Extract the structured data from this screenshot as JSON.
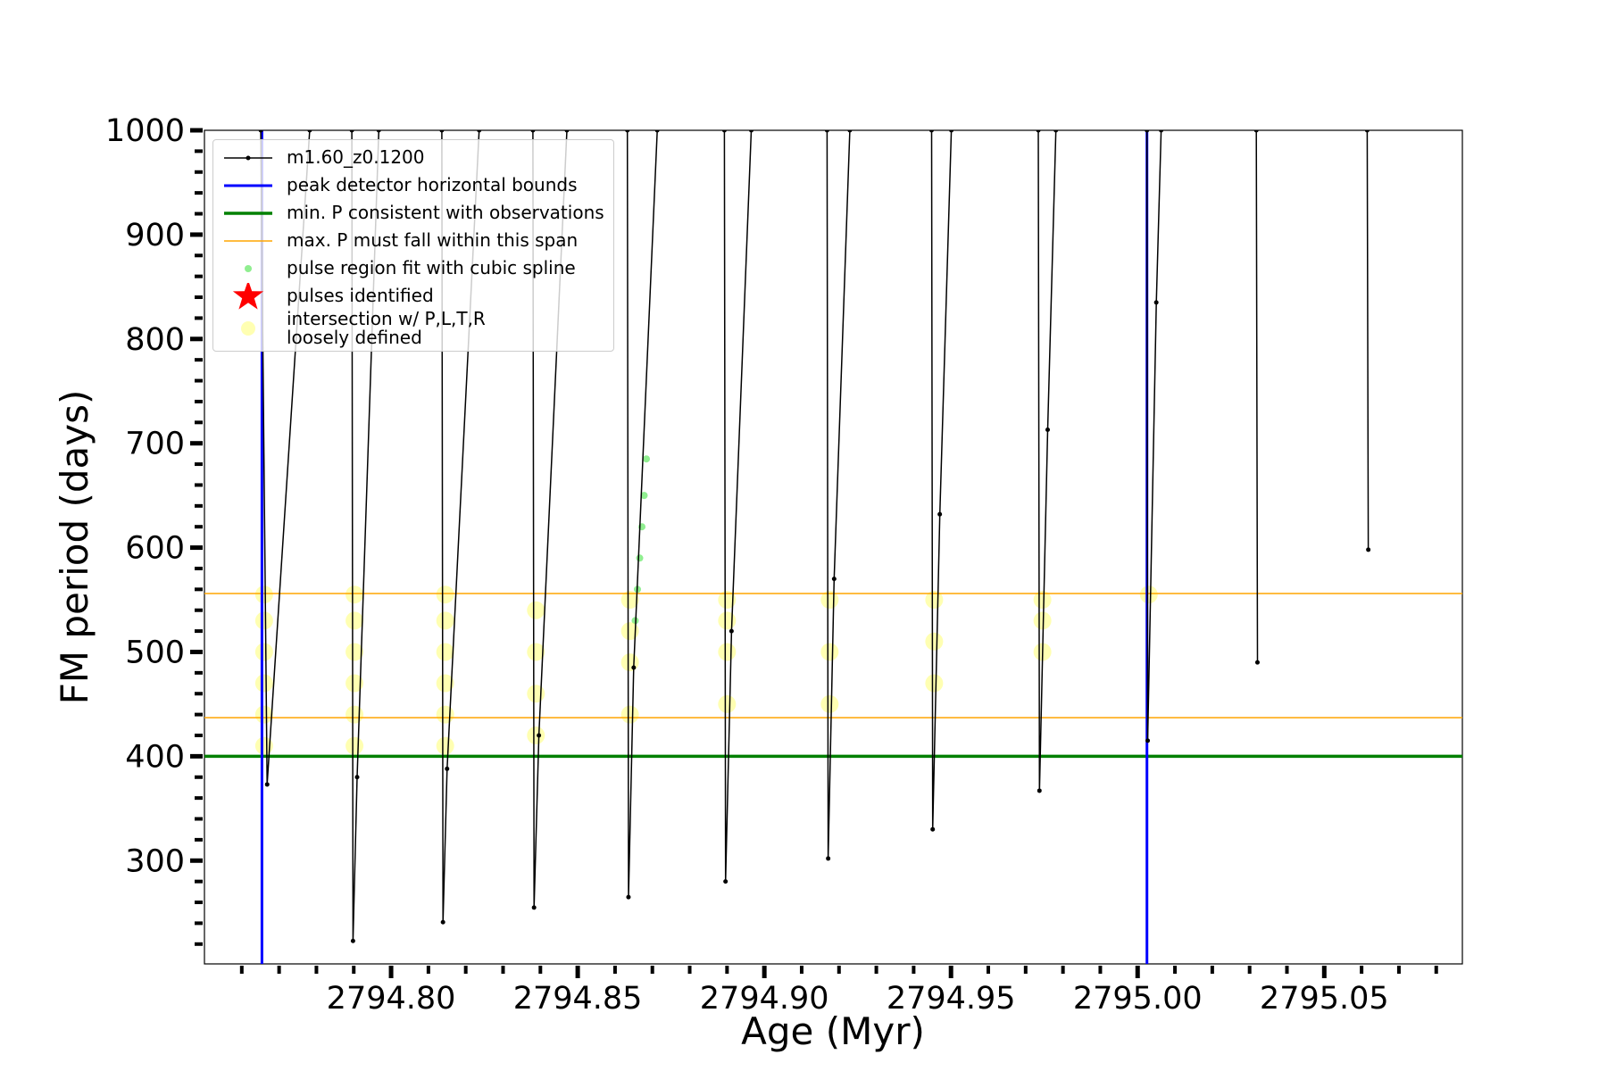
{
  "chart_data": {
    "type": "line",
    "xlabel": "Age (Myr)",
    "ylabel": "FM period (days)",
    "xlim": [
      2794.75,
      2795.087
    ],
    "ylim": [
      201,
      1000
    ],
    "xticks": [
      {
        "value": 2794.8,
        "label": "2794.80"
      },
      {
        "value": 2794.85,
        "label": "2794.85"
      },
      {
        "value": 2794.9,
        "label": "2794.90"
      },
      {
        "value": 2794.95,
        "label": "2794.95"
      },
      {
        "value": 2795.0,
        "label": "2795.00"
      },
      {
        "value": 2795.05,
        "label": "2795.05"
      }
    ],
    "xticks_minor": [
      2794.76,
      2794.77,
      2794.78,
      2794.79,
      2794.81,
      2794.82,
      2794.83,
      2794.84,
      2794.86,
      2794.87,
      2794.88,
      2794.89,
      2794.91,
      2794.92,
      2794.93,
      2794.94,
      2794.96,
      2794.97,
      2794.98,
      2794.99,
      2795.01,
      2795.02,
      2795.03,
      2795.04,
      2795.06,
      2795.07,
      2795.08
    ],
    "yticks": [
      300,
      400,
      500,
      600,
      700,
      800,
      900,
      1000
    ],
    "yticks_minor": [
      220,
      240,
      260,
      280,
      320,
      340,
      360,
      380,
      420,
      440,
      460,
      480,
      520,
      540,
      560,
      580,
      620,
      640,
      660,
      680,
      720,
      740,
      760,
      780,
      820,
      840,
      860,
      880,
      920,
      940,
      960,
      980
    ],
    "legend": "upper left",
    "series": [
      {
        "name": "m1.60_z0.1200",
        "type": "line",
        "color": "#000000",
        "linewidth": 1.5,
        "x": [
          2794.7651,
          2794.7668,
          2794.7782,
          null,
          2794.7895,
          2794.7898,
          2794.7909,
          2794.7967,
          null,
          2794.8136,
          2794.8139,
          2794.815,
          2794.8236,
          null,
          2794.838,
          2794.8383,
          2794.8396,
          2794.8471,
          null,
          2794.8633,
          2794.8636,
          2794.865,
          2794.8713,
          null,
          2794.8893,
          2794.8896,
          2794.8912,
          2794.8965,
          null,
          2794.9168,
          2794.9171,
          2794.9187,
          2794.9229,
          null,
          2794.9448,
          2794.9451,
          2794.947,
          2794.9501,
          null,
          2794.9734,
          2794.9737,
          2794.9759,
          2794.9781,
          null,
          2795.0025,
          2795.0027,
          2795.005,
          2795.0063,
          null,
          2795.0318,
          2795.0321,
          null,
          2795.0615,
          2795.0618
        ],
        "values": [
          1000,
          373,
          1000,
          null,
          1000,
          223,
          380,
          1000,
          null,
          1000,
          241,
          388,
          1000,
          null,
          1000,
          255,
          420,
          1000,
          null,
          1000,
          265,
          485,
          1000,
          null,
          1000,
          280,
          520,
          1000,
          null,
          1000,
          302,
          570,
          1000,
          null,
          1000,
          330,
          632,
          1000,
          null,
          1000,
          367,
          713,
          1000,
          null,
          1000,
          415,
          835,
          1000,
          null,
          1000,
          490,
          null,
          1000,
          598
        ]
      },
      {
        "name": "peak detector horizontal bounds",
        "type": "vline",
        "color": "#0000ff",
        "linewidth": 3,
        "x": [
          2794.7654,
          2795.0025
        ]
      },
      {
        "name": "min. P consistent with observations",
        "type": "hline",
        "color": "#008000",
        "linewidth": 3.5,
        "values": [
          400
        ]
      },
      {
        "name": "max. P must fall within this span",
        "type": "hline",
        "color": "#ffa500",
        "linewidth": 1.5,
        "values": [
          556,
          437
        ]
      },
      {
        "name": "pulse region fit with cubic spline",
        "type": "scatter",
        "marker": "dot",
        "color": "#90ee90",
        "x": [
          2794.8654,
          2794.866,
          2794.8666,
          2794.8672,
          2794.8678,
          2794.8684
        ],
        "values": [
          530,
          560,
          590,
          620,
          650,
          685
        ]
      },
      {
        "name": "pulses identified",
        "type": "scatter",
        "marker": "star",
        "color": "#ff0000",
        "x": [],
        "values": []
      },
      {
        "name": "intersection w/ P,L,T,R\nloosely defined",
        "type": "scatter",
        "marker": "circle",
        "color": "#ffff66",
        "x": [
          2794.766,
          2794.766,
          2794.766,
          2794.766,
          2794.766,
          2794.766,
          2794.7902,
          2794.7902,
          2794.7902,
          2794.7902,
          2794.7902,
          2794.7902,
          2794.8145,
          2794.8145,
          2794.8145,
          2794.8145,
          2794.8145,
          2794.8145,
          2794.8388,
          2794.8388,
          2794.8388,
          2794.8388,
          2794.864,
          2794.864,
          2794.864,
          2794.864,
          2794.89,
          2794.89,
          2794.89,
          2794.89,
          2794.9175,
          2794.9175,
          2794.9175,
          2794.9455,
          2794.9455,
          2794.9455,
          2794.9745,
          2794.9745,
          2794.9745,
          2795.003
        ],
        "values": [
          410,
          440,
          470,
          500,
          530,
          555,
          410,
          440,
          470,
          500,
          530,
          555,
          410,
          440,
          470,
          500,
          530,
          555,
          420,
          460,
          500,
          540,
          440,
          490,
          520,
          550,
          450,
          500,
          530,
          550,
          450,
          500,
          550,
          470,
          510,
          550,
          500,
          530,
          550,
          555
        ]
      }
    ]
  }
}
